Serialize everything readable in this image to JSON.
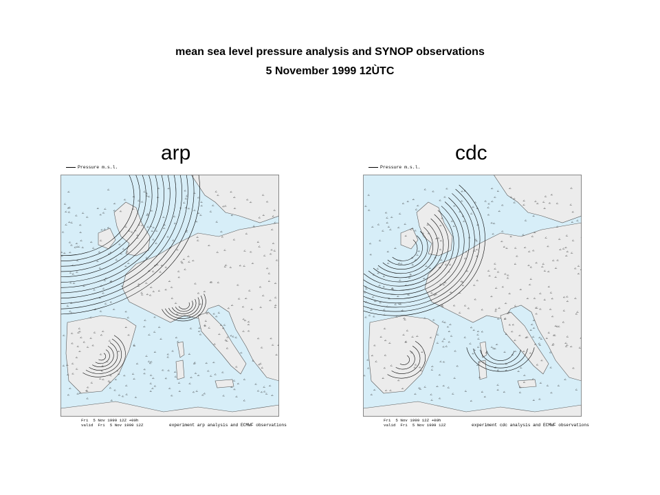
{
  "title": {
    "line1": "mean sea level pressure analysis and SYNOP observations",
    "line2": "5 November 1999 12ÙTC"
  },
  "panels": [
    {
      "label": "arp",
      "legend": "Pressure m.s.l.",
      "footer_line1": "Fri  5 Nov 1999 12Z +00h",
      "footer_line2": "valid  Fri  5 Nov 1999 12Z",
      "experiment": "experiment arp analysis and ECMWF observations"
    },
    {
      "label": "cdc",
      "legend": "Pressure m.s.l.",
      "footer_line1": "Fri  5 Nov 1999 12Z +00h",
      "footer_line2": "valid  Fri  5 Nov 1999 12Z",
      "experiment": "experiment cdc analysis and ECMWF observations"
    }
  ],
  "colors": {
    "sea": "#d7eef8",
    "land": "#ececec",
    "contour": "#000000"
  }
}
